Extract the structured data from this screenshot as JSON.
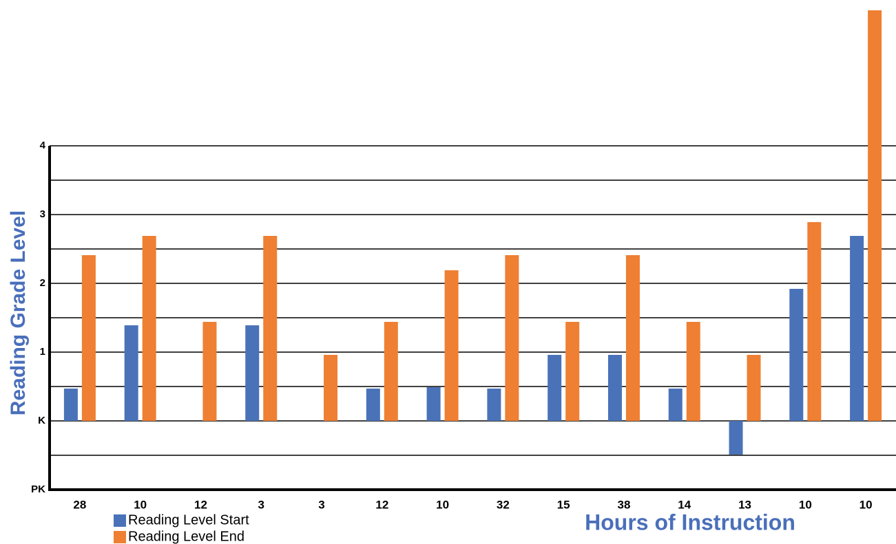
{
  "chart_data": {
    "type": "bar",
    "xlabel": "Hours of Instruction",
    "ylabel": "Reading Grade Level",
    "categories": [
      "28",
      "10",
      "12",
      "3",
      "3",
      "12",
      "10",
      "32",
      "15",
      "38",
      "14",
      "13",
      "10",
      "10"
    ],
    "series": [
      {
        "name": "Reading Level Start",
        "color": "#4a72b8",
        "values": [
          0.47,
          1.39,
          0,
          1.39,
          0,
          0.47,
          0.49,
          0.47,
          0.96,
          0.96,
          0.47,
          -0.49,
          1.92,
          2.69
        ]
      },
      {
        "name": "Reading Level End",
        "color": "#ef7f32",
        "values": [
          2.41,
          2.69,
          1.44,
          2.69,
          0.96,
          1.44,
          2.19,
          2.41,
          1.44,
          2.41,
          1.44,
          0.96,
          2.89,
          5.97
        ]
      }
    ],
    "ylim": [
      -1,
      6
    ],
    "yticks": [
      {
        "value": -1,
        "label": "PK"
      },
      {
        "value": -0.5,
        "label": null
      },
      {
        "value": 0,
        "label": "K"
      },
      {
        "value": 0.5,
        "label": null
      },
      1,
      {
        "value": 1.5,
        "label": null
      },
      2,
      {
        "value": 2.5,
        "label": null
      },
      3,
      {
        "value": 3.5,
        "label": null
      },
      4
    ],
    "grid": true,
    "legend": "lower left"
  }
}
